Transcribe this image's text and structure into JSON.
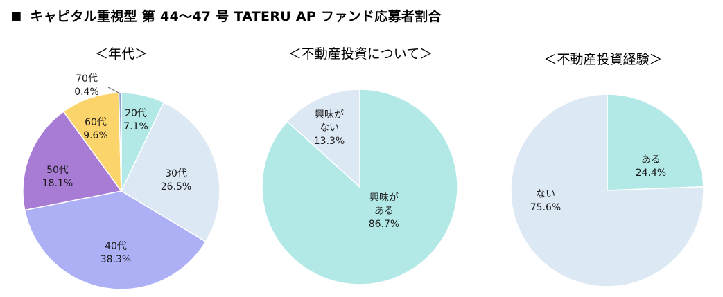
{
  "header": {
    "bullet": "■",
    "title": "キャピタル重視型 第 44～47 号 TATERU AP ファンド応募者割合"
  },
  "chart_data": [
    {
      "type": "pie",
      "title": "＜年代＞",
      "slices": [
        {
          "label": "20代",
          "value": 7.1,
          "value_label": "7.1%",
          "color": "#b2e9e6"
        },
        {
          "label": "30代",
          "value": 26.5,
          "value_label": "26.5%",
          "color": "#dde8f5"
        },
        {
          "label": "40代",
          "value": 38.3,
          "value_label": "38.3%",
          "color": "#adb0f5"
        },
        {
          "label": "50代",
          "value": 18.1,
          "value_label": "18.1%",
          "color": "#a87bd4"
        },
        {
          "label": "60代",
          "value": 9.6,
          "value_label": "9.6%",
          "color": "#fbd56c"
        },
        {
          "label": "70代",
          "value": 0.4,
          "value_label": "0.4%",
          "color": "#8ea2d6"
        }
      ]
    },
    {
      "type": "pie",
      "title": "＜不動産投資について＞",
      "slices": [
        {
          "label": "興味が\nある",
          "value": 86.7,
          "value_label": "86.7%",
          "color": "#b2e9e6"
        },
        {
          "label": "興味が\nない",
          "value": 13.3,
          "value_label": "13.3%",
          "color": "#dde8f5"
        }
      ]
    },
    {
      "type": "pie",
      "title": "＜不動産投資経験＞",
      "slices": [
        {
          "label": "ある",
          "value": 24.4,
          "value_label": "24.4%",
          "color": "#b2e9e6"
        },
        {
          "label": "ない",
          "value": 75.6,
          "value_label": "75.6%",
          "color": "#dde8f5"
        }
      ]
    }
  ]
}
